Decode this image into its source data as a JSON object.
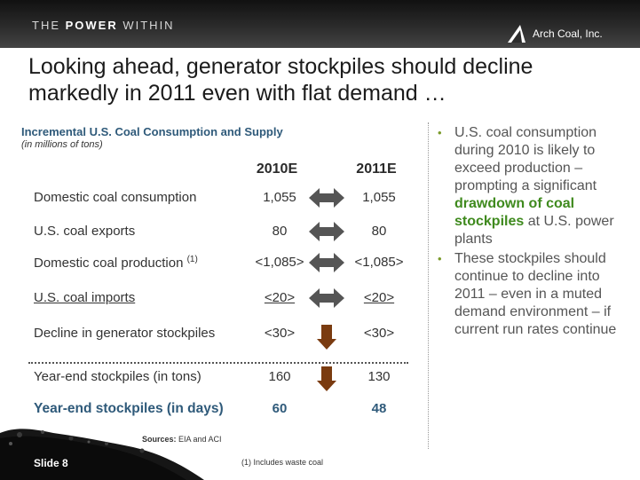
{
  "header": {
    "tagline_pre": "THE ",
    "tagline_bold": "POWER",
    "tagline_post": " WITHIN",
    "logo_text": "Arch Coal, Inc.",
    "logo_icon": "arch-triangle-icon"
  },
  "title": "Looking ahead, generator stockpiles should decline markedly in 2011 even with flat demand …",
  "table": {
    "title": "Incremental U.S. Coal Consumption and Supply",
    "subtitle": "(in millions of tons)",
    "col1": "2010E",
    "col2": "2011E",
    "rows": [
      {
        "label": "Domestic coal consumption",
        "v1": "1,055",
        "v2": "1,055",
        "arrow": "double"
      },
      {
        "label": "U.S. coal exports",
        "v1": "80",
        "v2": "80",
        "arrow": "double"
      },
      {
        "label": "Domestic coal production",
        "sup": "(1)",
        "v1": "<1,085>",
        "v2": "<1,085>",
        "arrow": "double"
      },
      {
        "label": "U.S. coal imports",
        "v1": "<20>",
        "v2": "<20>",
        "arrow": "double"
      },
      {
        "label": "Decline in generator stockpiles",
        "v1": "<30>",
        "v2": "<30>",
        "arrow": "down"
      },
      {
        "label": "Year-end stockpiles (in tons)",
        "v1": "160",
        "v2": "130",
        "arrow": "down"
      },
      {
        "label": "Year-end stockpiles (in days)",
        "v1": "60",
        "v2": "48",
        "arrow": "none"
      }
    ]
  },
  "bullets": {
    "b1_pre": "U.S. coal consumption during 2010 is likely to exceed production – prompting a significant ",
    "b1_highlight": "drawdown of coal stockpiles",
    "b1_post": " at U.S. power plants",
    "b2": "These stockpiles should continue to decline into 2011 – even in a muted demand environment – if current run rates continue"
  },
  "sources_label": "Sources:",
  "sources_text": " EIA and ACI",
  "footnote": "(1)  Includes waste coal",
  "slide_label": "Slide 8",
  "colors": {
    "accent_blue": "#2f5a7a",
    "highlight_green": "#3f8a1e",
    "arrow_gray": "#555555",
    "arrow_brown": "#7a3b10"
  }
}
